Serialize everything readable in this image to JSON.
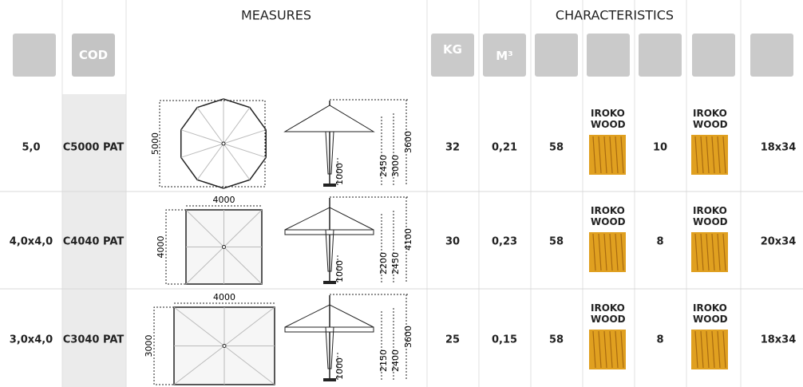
{
  "header": {
    "measures": "MEASURES",
    "characteristics": "CHARACTERISTICS"
  },
  "icons": {
    "cod": "COD",
    "kg": "KG",
    "m3": "M³"
  },
  "rows": [
    {
      "size": "5,0",
      "code": "C5000 PAT",
      "plan_dims": [
        "5000"
      ],
      "side_dims": [
        1000,
        2450,
        3000,
        3600
      ],
      "weight": 32,
      "volume": "0,21",
      "diameter": 58,
      "pole_material": "IROKO WOOD",
      "ribs": 10,
      "frame_material": "IROKO WOOD",
      "section": "18x34"
    },
    {
      "size": "4,0x4,0",
      "code": "C4040 PAT",
      "plan_dims": [
        4000,
        4000
      ],
      "side_dims": [
        1000,
        2200,
        2450,
        4100
      ],
      "weight": 30,
      "volume": "0,23",
      "diameter": 58,
      "pole_material": "IROKO WOOD",
      "ribs": 8,
      "frame_material": "IROKO WOOD",
      "section": "20x34"
    },
    {
      "size": "3,0x4,0",
      "code": "C3040 PAT",
      "plan_dims": [
        4000,
        3000
      ],
      "side_dims": [
        1000,
        2150,
        2400,
        3600
      ],
      "weight": 25,
      "volume": "0,15",
      "diameter": 58,
      "pole_material": "IROKO WOOD",
      "ribs": 8,
      "frame_material": "IROKO WOOD",
      "section": "18x34"
    }
  ]
}
